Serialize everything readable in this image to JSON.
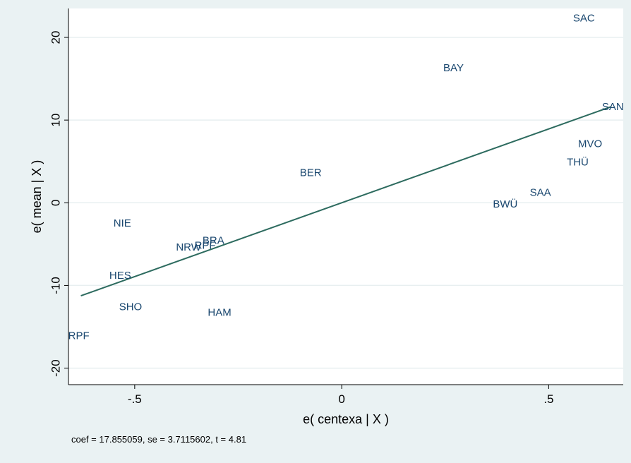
{
  "chart_data": {
    "type": "scatter",
    "xlabel": "e( centexa | X )",
    "ylabel": "e( mean | X )",
    "xlim": [
      -0.66,
      0.68
    ],
    "ylim": [
      -22,
      23.5
    ],
    "xticks": [
      -0.5,
      0,
      0.5
    ],
    "xtick_labels": [
      "-.5",
      "0",
      ".5"
    ],
    "yticks": [
      -20,
      -10,
      0,
      10,
      20
    ],
    "ytick_labels": [
      "-20",
      "-10",
      "0",
      "10",
      "20"
    ],
    "grid": true,
    "points": [
      {
        "label": "SAC",
        "x": 0.585,
        "y": 22.3
      },
      {
        "label": "BAY",
        "x": 0.27,
        "y": 16.3
      },
      {
        "label": "SAN",
        "x": 0.655,
        "y": 11.6
      },
      {
        "label": "MVO",
        "x": 0.6,
        "y": 7.1
      },
      {
        "label": "THÜ",
        "x": 0.57,
        "y": 4.9
      },
      {
        "label": "BER",
        "x": -0.075,
        "y": 3.6
      },
      {
        "label": "SAA",
        "x": 0.48,
        "y": 1.2
      },
      {
        "label": "BWÜ",
        "x": 0.395,
        "y": -0.2
      },
      {
        "label": "NIE",
        "x": -0.53,
        "y": -2.5
      },
      {
        "label": "BRA",
        "x": -0.31,
        "y": -4.6
      },
      {
        "label": "RPF",
        "x": -0.33,
        "y": -5.2
      },
      {
        "label": "NRW",
        "x": -0.37,
        "y": -5.4
      },
      {
        "label": "HES",
        "x": -0.535,
        "y": -8.8
      },
      {
        "label": "SHO",
        "x": -0.51,
        "y": -12.6
      },
      {
        "label": "HAM",
        "x": -0.295,
        "y": -13.3
      },
      {
        "label": "RPF",
        "x": -0.635,
        "y": -16.1
      }
    ],
    "fit_line": {
      "slope": 17.855059,
      "intercept": 0,
      "x_range": [
        -0.63,
        0.65
      ],
      "color": "#2d6b5f"
    },
    "label_color": "#1a476f",
    "plot_background": "#ffffff",
    "page_background": "#eaf2f3",
    "grid_color": "#e8eff0",
    "note": "coef = 17.855059, se = 3.7115602, t = 4.81"
  }
}
